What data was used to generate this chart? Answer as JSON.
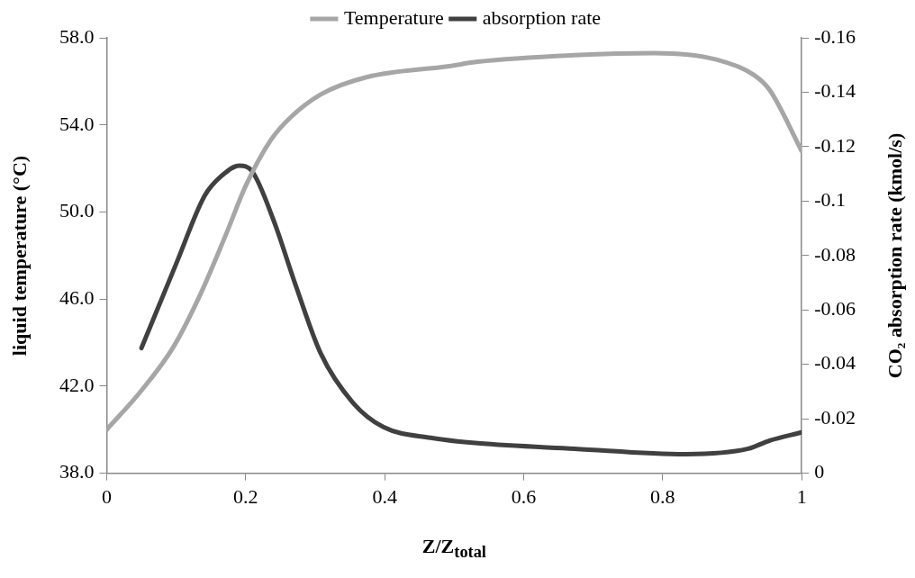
{
  "chart_data": {
    "type": "line",
    "xlabel": "Z/Z$_{total}$",
    "ylabel": "liquid temperature (°C)",
    "y2label": "CO₂ absorption rate (kmol/s)",
    "xlim": [
      0,
      1
    ],
    "xticks": [
      0,
      0.2,
      0.4,
      0.6,
      0.8,
      1
    ],
    "ylim": [
      38,
      58
    ],
    "yticks": [
      {
        "value": 38,
        "label": "38.0"
      },
      {
        "value": 42,
        "label": "42.0"
      },
      {
        "value": 46,
        "label": "46.0"
      },
      {
        "value": 50,
        "label": "50.0"
      },
      {
        "value": 54,
        "label": "54.0"
      },
      {
        "value": 58,
        "label": "58.0"
      }
    ],
    "y2lim": [
      0,
      -0.16
    ],
    "y2ticks": [
      0,
      -0.02,
      -0.04,
      -0.06,
      -0.08,
      -0.1,
      -0.12,
      -0.14,
      -0.16
    ],
    "grid": false,
    "legend": "top",
    "marker": "none",
    "line_style": "solid",
    "series": [
      {
        "name": "Temperature",
        "color": "#a6a6a6",
        "x": [
          0,
          0.05,
          0.096,
          0.136,
          0.172,
          0.2,
          0.236,
          0.263,
          0.308,
          0.375,
          0.493,
          0.534,
          0.673,
          0.787,
          0.877,
          0.931,
          0.954,
          1
        ],
        "values": [
          40.0,
          41.8,
          43.8,
          46.3,
          49.0,
          51.2,
          53.3,
          54.3,
          55.4,
          56.2,
          56.7,
          56.9,
          57.2,
          57.3,
          57.0,
          56.3,
          55.6,
          52.8
        ]
      },
      {
        "name": "absorption rate",
        "color": "#404040",
        "axis": "y2",
        "x": [
          0.05,
          0.1,
          0.141,
          0.164,
          0.191,
          0.209,
          0.24,
          0.272,
          0.308,
          0.354,
          0.398,
          0.466,
          0.534,
          0.673,
          0.832,
          0.923,
          0.954,
          1
        ],
        "values": [
          -0.046,
          -0.077,
          -0.102,
          -0.109,
          -0.113,
          -0.111,
          -0.093,
          -0.069,
          -0.044,
          -0.026,
          -0.017,
          -0.013,
          -0.011,
          -0.009,
          -0.007,
          -0.009,
          -0.012,
          -0.015
        ]
      }
    ]
  }
}
